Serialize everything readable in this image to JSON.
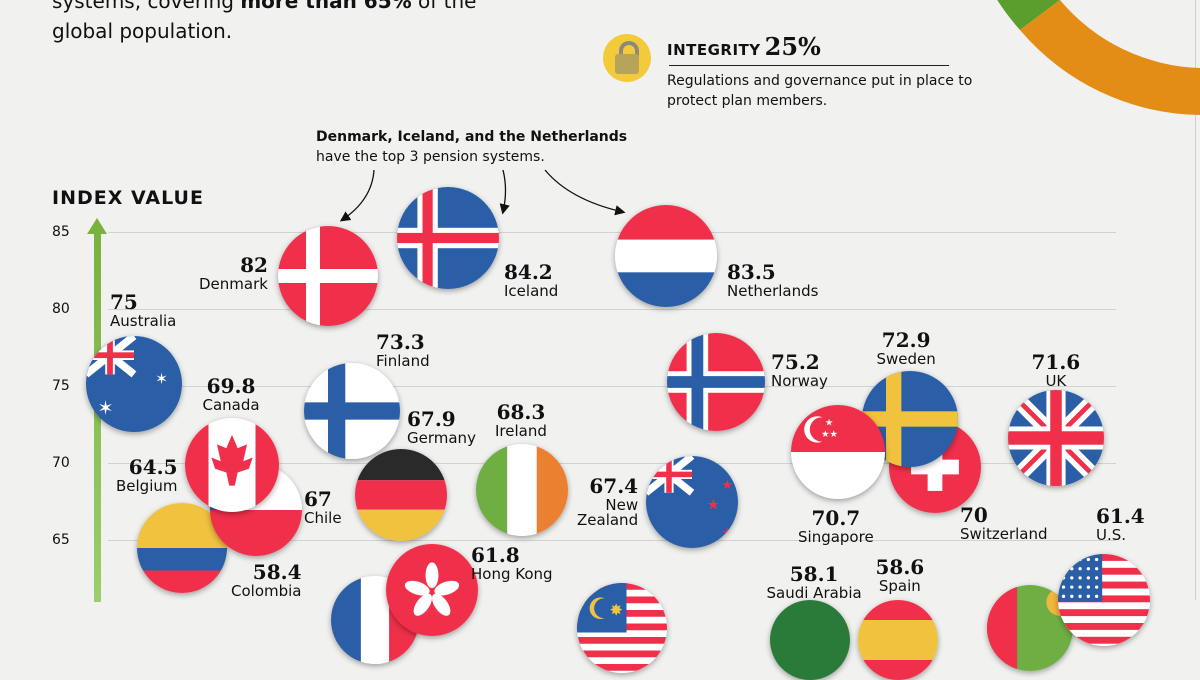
{
  "intro": {
    "line1_pre": "systems, covering ",
    "line1_bold": "more than 65%",
    "line1_post": " of the",
    "line2": "global population."
  },
  "integrity": {
    "label": "INTEGRITY",
    "percent": "25%",
    "description": "Regulations and governance put in place to protect plan members.",
    "icon": "padlock-icon"
  },
  "donut": {
    "segments": [
      {
        "name": "adequacy-segment",
        "color": "#5c9e2e"
      },
      {
        "name": "integrity-segment",
        "color": "#e48d16"
      }
    ]
  },
  "callout": {
    "bold": "Denmark, Iceland, and the Netherlands",
    "text": "have the top 3 pension systems."
  },
  "chart_data": {
    "type": "scatter",
    "title": "",
    "ylabel": "INDEX VALUE",
    "xlabel": "",
    "ylim": [
      60,
      85
    ],
    "yticks": [
      85,
      80,
      75,
      70,
      65
    ],
    "grid": true,
    "points": [
      {
        "country": "Denmark",
        "value": 82,
        "value_label": "82",
        "flag": "denmark"
      },
      {
        "country": "Iceland",
        "value": 84.2,
        "value_label": "84.2",
        "flag": "iceland"
      },
      {
        "country": "Netherlands",
        "value": 83.5,
        "value_label": "83.5",
        "flag": "netherlands"
      },
      {
        "country": "Australia",
        "value": 75,
        "value_label": "75",
        "flag": "australia"
      },
      {
        "country": "Finland",
        "value": 73.3,
        "value_label": "73.3",
        "flag": "finland"
      },
      {
        "country": "Norway",
        "value": 75.2,
        "value_label": "75.2",
        "flag": "norway"
      },
      {
        "country": "Sweden",
        "value": 72.9,
        "value_label": "72.9",
        "flag": "sweden"
      },
      {
        "country": "UK",
        "value": 71.6,
        "value_label": "71.6",
        "flag": "uk"
      },
      {
        "country": "Canada",
        "value": 69.8,
        "value_label": "69.8",
        "flag": "canada"
      },
      {
        "country": "Germany",
        "value": 67.9,
        "value_label": "67.9",
        "flag": "germany"
      },
      {
        "country": "Ireland",
        "value": 68.3,
        "value_label": "68.3",
        "flag": "ireland"
      },
      {
        "country": "Belgium",
        "value": 64.5,
        "value_label": "64.5",
        "flag": "belgium"
      },
      {
        "country": "Chile",
        "value": 67,
        "value_label": "67",
        "flag": "chile"
      },
      {
        "country": "New Zealand",
        "value": 67.4,
        "value_label": "67.4",
        "flag": "new-zealand"
      },
      {
        "country": "Singapore",
        "value": 70.7,
        "value_label": "70.7",
        "flag": "singapore"
      },
      {
        "country": "Switzerland",
        "value": 70,
        "value_label": "70",
        "flag": "switzerland"
      },
      {
        "country": "U.S.",
        "value": 61.4,
        "value_label": "61.4",
        "flag": "us"
      },
      {
        "country": "Colombia",
        "value": 58.4,
        "value_label": "58.4",
        "flag": "colombia"
      },
      {
        "country": "Hong Kong",
        "value": 61.8,
        "value_label": "61.8",
        "flag": "hong-kong"
      },
      {
        "country": "Saudi Arabia",
        "value": 58.1,
        "value_label": "58.1",
        "flag": "saudi-arabia"
      },
      {
        "country": "Spain",
        "value": 58.6,
        "value_label": "58.6",
        "flag": "spain"
      }
    ],
    "partially_visible_flags": [
      "france",
      "malaysia",
      "uruguay"
    ]
  },
  "colors": {
    "red": "#f0304a",
    "blue": "#2a5fa7",
    "white": "#ffffff",
    "yellow": "#f0c23e",
    "green": "#6eae43",
    "orange": "#ea8030",
    "black": "#2a2a2a",
    "axis_green": "#79b13f"
  }
}
